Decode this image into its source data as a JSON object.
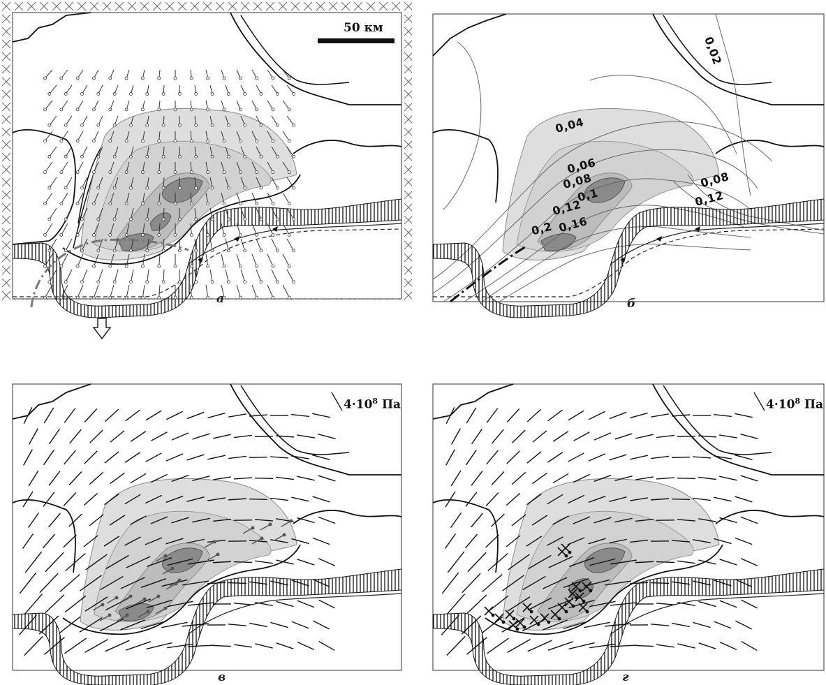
{
  "panels": {
    "a": {
      "label": "а",
      "scale_bar": "50 км"
    },
    "b": {
      "label": "б",
      "contour_labels": [
        "0,02",
        "0,04",
        "0,06",
        "0,08",
        "0,1",
        "0,12",
        "0,16",
        "0,2",
        "0,08",
        "0,12"
      ]
    },
    "c": {
      "label": "в",
      "stress_scale": {
        "value": "4·10",
        "exponent": "8",
        "unit": "Па"
      }
    },
    "d": {
      "label": "г",
      "stress_scale": {
        "value": "4·10",
        "exponent": "8",
        "unit": "Па"
      }
    }
  },
  "colors": {
    "relief_light": "#dedede",
    "relief_mid": "#c2c2c2",
    "relief_dark": "#8a8a8a",
    "coast": "#111111",
    "contour": "#666666"
  },
  "icons": [
    "down-arrow-icon",
    "compression-arrow-icon",
    "stress-tick-icon",
    "velocity-vector-icon"
  ]
}
